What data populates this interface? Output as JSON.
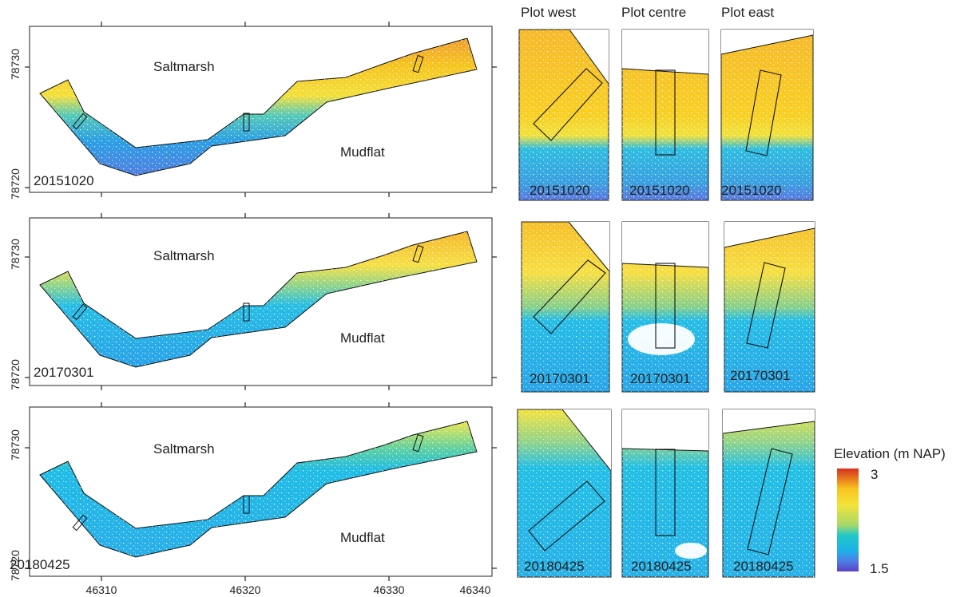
{
  "figure": {
    "column_headers": [
      "Plot west",
      "Plot centre",
      "Plot east"
    ],
    "zones": {
      "upper": "Saltmarsh",
      "lower": "Mudflat"
    },
    "x_ticks": [
      "46310",
      "46320",
      "46330",
      "46340"
    ],
    "y_ticks": [
      "78730",
      "78720"
    ],
    "rows": [
      {
        "date": "20151020"
      },
      {
        "date": "20170301"
      },
      {
        "date": "20180425"
      }
    ]
  },
  "legend": {
    "title": "Elevation (m NAP)",
    "max_label": "3",
    "min_label": "1.5",
    "stops": [
      "#d7301f",
      "#f7c51e",
      "#f4e23a",
      "#a6d96a",
      "#1fc8c8",
      "#1fb0e6",
      "#4f7ee6",
      "#5b3fc6"
    ]
  },
  "colors": {
    "high": "#e8572a",
    "saltmarsh": "#f5c324",
    "transition": "#9fd6a0",
    "mudflat": "#22b7e6",
    "deep": "#5c7fe3"
  }
}
